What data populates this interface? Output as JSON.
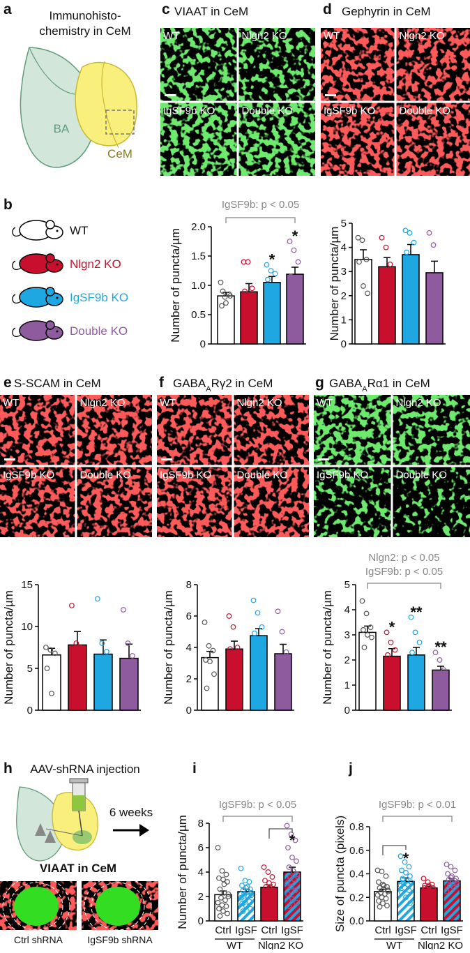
{
  "panel_letters": [
    "a",
    "b",
    "c",
    "d",
    "e",
    "f",
    "g",
    "h",
    "i",
    "j"
  ],
  "schematic": {
    "title": [
      "Immunohisto-",
      "chemistry in CeM"
    ],
    "regions": [
      "BA",
      "CeM"
    ]
  },
  "legend": [
    {
      "name": "WT",
      "color": "#ffffff"
    },
    {
      "name": "Nlgn2 KO",
      "color": "#c8102e"
    },
    {
      "name": "IgSF9b KO",
      "color": "#1ea7e1"
    },
    {
      "name": "Double KO",
      "color": "#8e5b9f"
    }
  ],
  "images": [
    {
      "title": "VIAAT in CeM",
      "color": "#27d027",
      "tiles": [
        "WT",
        "Nlgn2 KO",
        "IgSF9b KO",
        "Double KO"
      ]
    },
    {
      "title": "Gephyrin in CeM",
      "color": "#ff1a1a",
      "tiles": [
        "WT",
        "Nlgn2 KO",
        "IgSF9b KO",
        "Double KO"
      ]
    },
    {
      "title": "S-SCAM in CeM",
      "color": "#ff1a1a",
      "tiles": [
        "WT",
        "Nlgn2 KO",
        "IgSF9b KO",
        "Double KO"
      ]
    },
    {
      "title_parts": [
        "GABA",
        "A",
        "Rγ2 in CeM"
      ],
      "color": "#ff1a1a",
      "tiles": [
        "WT",
        "Nlgn2 KO",
        "IgSF9b KO",
        "Double KO"
      ]
    },
    {
      "title_parts": [
        "GABA",
        "A",
        "Rα1 in CeM"
      ],
      "color": "#27d027",
      "tiles": [
        "WT",
        "Nlgn2 KO",
        "IgSF9b KO",
        "Double KO"
      ]
    }
  ],
  "injection": {
    "title": "AAV-shRNA injection",
    "interval": "6 weeks",
    "image_title": "VIAAT in CeM",
    "images": [
      "Ctrl shRNA",
      "IgSF9b shRNA"
    ]
  },
  "chart_data": [
    {
      "type": "bar",
      "ylabel": "Number of puncta/µm",
      "annotation": [
        "IgSF9b: p < 0.05"
      ],
      "ylim": [
        0,
        2
      ],
      "yticks": [
        0,
        0.5,
        {
          "value": 1,
          "label": "1.0"
        },
        1.5,
        {
          "value": 2,
          "label": "2.0"
        }
      ],
      "values": [
        0.82,
        0.89,
        1.05,
        1.19
      ],
      "errors": [
        0.06,
        0.14,
        0.1,
        0.12
      ],
      "colors": [
        "#ffffff",
        "#c8102e",
        "#1ea7e1",
        "#8e5b9f"
      ],
      "point_colors": [
        "#555555",
        "#c8102e",
        "#1ea7e1",
        "#8e5b9f"
      ],
      "stars": [
        null,
        null,
        "*",
        "*"
      ],
      "points": [
        [
          1.05,
          0.8,
          0.85,
          0.65,
          0.7,
          0.82,
          0.9
        ],
        [
          1.4,
          1.4,
          0.95,
          0.9,
          0.7,
          0.55,
          0.5
        ],
        [
          1.35,
          1.25,
          1.2,
          1.1,
          0.95,
          0.8,
          0.85
        ],
        [
          1.75,
          1.6,
          1.4,
          1.15,
          1.0,
          0.75,
          0.6
        ]
      ]
    },
    {
      "type": "bar",
      "ylabel": "Number of puncta/µm",
      "ylim": [
        0,
        5
      ],
      "yticks": [
        0,
        1,
        2,
        3,
        4,
        5
      ],
      "values": [
        3.5,
        3.2,
        3.7,
        2.95
      ],
      "errors": [
        0.4,
        0.38,
        0.42,
        0.48
      ],
      "colors": [
        "#ffffff",
        "#c8102e",
        "#1ea7e1",
        "#8e5b9f"
      ],
      "point_colors": [
        "#555555",
        "#c8102e",
        "#1ea7e1",
        "#8e5b9f"
      ],
      "points": [
        [
          4.4,
          4.3,
          3.5,
          3.4,
          2.4,
          2.1
        ],
        [
          4.4,
          4.0,
          3.3,
          3.0,
          2.9,
          2.1
        ],
        [
          4.7,
          4.6,
          4.2,
          3.8,
          2.5,
          2.3
        ],
        [
          4.6,
          4.1,
          2.5,
          2.5,
          2.0,
          1.6
        ]
      ]
    },
    {
      "type": "bar",
      "ylabel": "Number of puncta/µm",
      "ylim": [
        0,
        15
      ],
      "yticks": [
        0,
        5,
        10,
        15
      ],
      "values": [
        6.6,
        7.8,
        6.7,
        6.2
      ],
      "errors": [
        0.8,
        1.6,
        1.7,
        1.7
      ],
      "colors": [
        "#ffffff",
        "#c8102e",
        "#1ea7e1",
        "#8e5b9f"
      ],
      "point_colors": [
        "#555555",
        "#c8102e",
        "#1ea7e1",
        "#8e5b9f"
      ],
      "points": [
        [
          7.5,
          7.2,
          6.8,
          5.0,
          2.0
        ],
        [
          12.5,
          8.0,
          7.5,
          6.3,
          1.5
        ],
        [
          13.3,
          8.0,
          7.0,
          5.5,
          3.2
        ],
        [
          12.0,
          8.0,
          6.5,
          3.3,
          2.5
        ]
      ]
    },
    {
      "type": "bar",
      "ylabel": "Number of puncta/µm",
      "ylim": [
        0,
        8
      ],
      "yticks": [
        0,
        2,
        4,
        6,
        8
      ],
      "values": [
        3.35,
        3.9,
        4.75,
        3.6
      ],
      "errors": [
        0.4,
        0.5,
        0.45,
        0.6
      ],
      "colors": [
        "#ffffff",
        "#c8102e",
        "#1ea7e1",
        "#8e5b9f"
      ],
      "point_colors": [
        "#555555",
        "#c8102e",
        "#1ea7e1",
        "#8e5b9f"
      ],
      "points": [
        [
          5.6,
          4.1,
          3.8,
          3.2,
          3.1,
          2.3,
          1.4
        ],
        [
          6.0,
          5.3,
          4.0,
          3.9,
          3.3,
          2.2,
          2.1
        ],
        [
          7.0,
          6.2,
          5.3,
          4.9,
          4.3,
          4.0,
          3.6
        ],
        [
          6.3,
          5.0,
          3.7,
          3.0,
          2.6,
          2.3,
          1.5
        ]
      ]
    },
    {
      "type": "bar",
      "ylabel": "Number of puncta/µm",
      "annotation": [
        "Nlgn2: p < 0.05",
        "IgSF9b: p < 0.05"
      ],
      "ylim": [
        0,
        5
      ],
      "yticks": [
        0,
        1,
        2,
        3,
        4,
        5
      ],
      "values": [
        3.1,
        2.15,
        2.2,
        1.6
      ],
      "errors": [
        0.25,
        0.3,
        0.3,
        0.15
      ],
      "colors": [
        "#ffffff",
        "#c8102e",
        "#1ea7e1",
        "#8e5b9f"
      ],
      "point_colors": [
        "#555555",
        "#c8102e",
        "#1ea7e1",
        "#8e5b9f"
      ],
      "stars": [
        null,
        "*",
        "**",
        "**"
      ],
      "points": [
        [
          4.35,
          3.85,
          3.3,
          3.2,
          3.0,
          2.9,
          2.5
        ],
        [
          3.1,
          2.7,
          2.4,
          2.2,
          1.6,
          1.3
        ],
        [
          3.7,
          3.1,
          2.7,
          2.3,
          1.6,
          1.8
        ],
        [
          2.3,
          2.0,
          1.6,
          1.4,
          1.2
        ]
      ]
    },
    {
      "type": "bar",
      "ylabel": "Number of puncta/µm",
      "annotation": [
        "IgSF9b: p < 0.05"
      ],
      "ylim": [
        0,
        8
      ],
      "yticks": [
        0,
        2,
        4,
        6,
        8
      ],
      "categories": [
        "Ctrl",
        "IgSF",
        "Ctrl",
        "IgSF"
      ],
      "groups": [
        "WT",
        "Nlgn2 KO"
      ],
      "values": [
        2.15,
        2.4,
        2.75,
        4.0
      ],
      "errors": [
        0.3,
        0.2,
        0.2,
        0.4
      ],
      "colors": [
        "#ffffff",
        "#1ea7e1",
        "#c8102e",
        "#1ea7e1"
      ],
      "hatch": [
        false,
        true,
        false,
        true
      ],
      "hatch_base": [
        "#ffffff",
        "#ffffff",
        "#c8102e",
        "#c8102e"
      ],
      "point_colors": [
        "#555555",
        "#1ea7e1",
        "#c8102e",
        "#8e5b9f"
      ],
      "stars": [
        null,
        null,
        null,
        "*"
      ],
      "points": [
        [
          6.0,
          4.1,
          3.8,
          3.5,
          3.4,
          3.2,
          2.6,
          2.3,
          2.0,
          1.9,
          1.7,
          1.5,
          1.3,
          1.2,
          1.0,
          0.8,
          0.6,
          0.4,
          3.0,
          2.2
        ],
        [
          4.3,
          3.3,
          3.2,
          2.9,
          2.7,
          2.6,
          2.5,
          2.4,
          2.3,
          2.2,
          2.0,
          1.9,
          1.7,
          1.6,
          1.4,
          1.2,
          1.0,
          0.8,
          2.8,
          2.1
        ],
        [
          4.4,
          4.0,
          3.6,
          3.3,
          3.1,
          3.0,
          2.8,
          2.6,
          2.5,
          2.3,
          2.1,
          1.9,
          1.6,
          1.3,
          1.0,
          2.7
        ],
        [
          7.8,
          7.1,
          6.6,
          6.0,
          5.2,
          4.9,
          4.4,
          4.1,
          3.8,
          3.6,
          3.4,
          3.1,
          2.8,
          2.5,
          2.2,
          1.8,
          1.5,
          1.2
        ]
      ]
    },
    {
      "type": "bar",
      "ylabel": "Size of puncta (pixels)",
      "annotation": [
        "IgSF9b: p < 0.01"
      ],
      "ylim": [
        0,
        0.8
      ],
      "yticks": [
        {
          "value": 0,
          "label": "0.0"
        },
        0.2,
        0.4,
        0.6,
        0.8
      ],
      "categories": [
        "Ctrl",
        "IgSF",
        "Ctrl",
        "IgSF"
      ],
      "groups": [
        "WT",
        "Nlgn2 KO"
      ],
      "values": [
        0.25,
        0.335,
        0.28,
        0.34
      ],
      "errors": [
        0.02,
        0.03,
        0.015,
        0.02
      ],
      "colors": [
        "#ffffff",
        "#1ea7e1",
        "#c8102e",
        "#1ea7e1"
      ],
      "hatch": [
        false,
        true,
        false,
        true
      ],
      "hatch_base": [
        "#ffffff",
        "#ffffff",
        "#c8102e",
        "#c8102e"
      ],
      "point_colors": [
        "#555555",
        "#1ea7e1",
        "#c8102e",
        "#8e5b9f"
      ],
      "stars": [
        null,
        "*",
        null,
        null
      ],
      "points": [
        [
          0.43,
          0.42,
          0.38,
          0.33,
          0.31,
          0.29,
          0.28,
          0.27,
          0.25,
          0.24,
          0.23,
          0.22,
          0.2,
          0.19,
          0.17,
          0.15,
          0.13,
          0.12,
          0.3,
          0.26
        ],
        [
          0.55,
          0.5,
          0.46,
          0.43,
          0.41,
          0.38,
          0.36,
          0.34,
          0.33,
          0.32,
          0.31,
          0.3,
          0.28,
          0.26,
          0.24,
          0.2,
          0.15,
          0.35
        ],
        [
          0.36,
          0.33,
          0.31,
          0.3,
          0.29,
          0.28,
          0.27,
          0.26,
          0.25,
          0.24,
          0.22,
          0.2,
          0.17,
          0.15,
          0.28,
          0.3
        ],
        [
          0.48,
          0.46,
          0.43,
          0.4,
          0.38,
          0.36,
          0.35,
          0.33,
          0.32,
          0.3,
          0.28,
          0.25,
          0.37,
          0.34
        ]
      ]
    }
  ]
}
